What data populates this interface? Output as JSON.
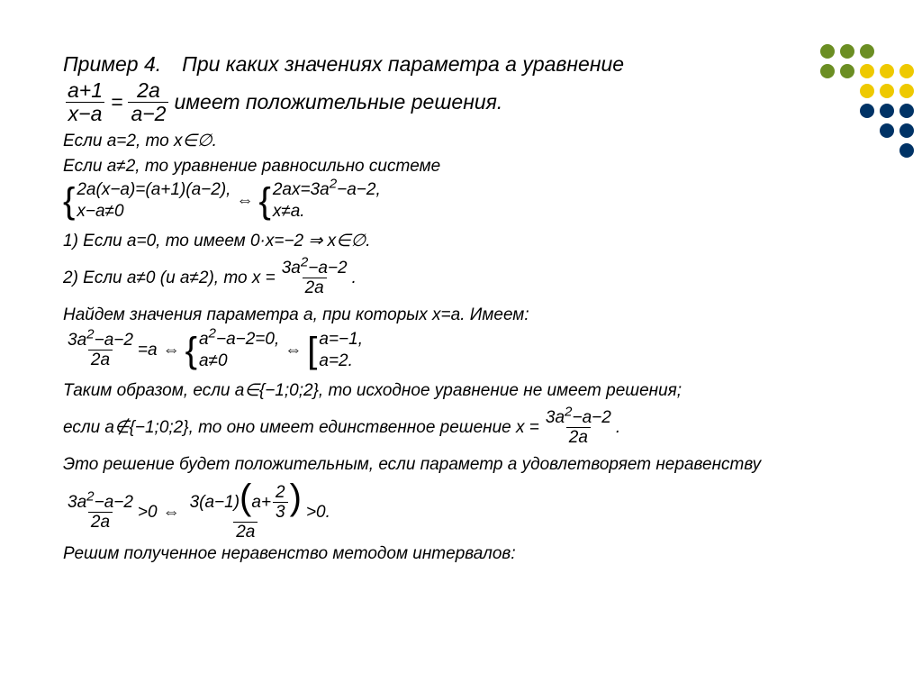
{
  "colors": {
    "text": "#000000",
    "background": "#ffffff",
    "dot_grid": [
      [
        "#6b8e23",
        "#6b8e23",
        "#6b8e23",
        "",
        ""
      ],
      [
        "#6b8e23",
        "#6b8e23",
        "#eec900",
        "#eec900",
        "#eec900"
      ],
      [
        "",
        "",
        "#eec900",
        "#eec900",
        "#eec900"
      ],
      [
        "",
        "",
        "#003366",
        "#003366",
        "#003366"
      ],
      [
        "",
        "",
        "",
        "#003366",
        "#003366"
      ],
      [
        "",
        "",
        "",
        "",
        "#003366"
      ]
    ]
  },
  "title1": "Пример 4. При каких значениях параметра a уравнение",
  "eqfrac": {
    "n1": "a+1",
    "d1": "x−a",
    "n2": "2a",
    "d2": "a−2"
  },
  "title2_after": "имеет положительные решения.",
  "l1": "Если a=2, то x∈∅.",
  "l2": "Если a≠2, то уравнение равносильно системе",
  "sys1": {
    "left_top": "2a(x−a)=(a+1)(a−2),",
    "left_bot": "x−a≠0",
    "right_top": "2ax=3a² −a−2,",
    "right_top_p1": "2ax=3a",
    "right_top_p2": "−a−2,",
    "right_bot": "x≠a."
  },
  "case1": "1) Если a=0, то имеем 0·x=−2 ⇒ x∈∅.",
  "case2_pre": "2) Если a≠0 (и a≠2), то x =",
  "fracA": {
    "num_p1": "3a",
    "num_p2": "−a−2",
    "den": "2a"
  },
  "period": ".",
  "l3": "Найдем значения параметра a, при которых x=a. Имеем:",
  "sys2": {
    "mid_top_p1": "a",
    "mid_top_p2": "−a−2=0,",
    "mid_bot": "a≠0",
    "right_top": "a=−1,",
    "right_bot": "a=2."
  },
  "eq_a": "=a",
  "l4": "Таким образом, если a∈{−1;0;2}, то исходное уравнение не имеет решения;",
  "l5_pre": "если a∉{−1;0;2}, то оно имеет единственное решение x =",
  "l6": "Это решение будет положительным, если параметр a удовлетворяет неравенству",
  "ineq": {
    "gt0": ">0",
    "num2_pre": "3(a−1)",
    "inner_num": "2",
    "inner_den": "3",
    "a_plus": "a+",
    "den2": "2a",
    "gt0_end": ">0."
  },
  "l7": "Решим полученное неравенство методом интервалов:",
  "two": "2"
}
